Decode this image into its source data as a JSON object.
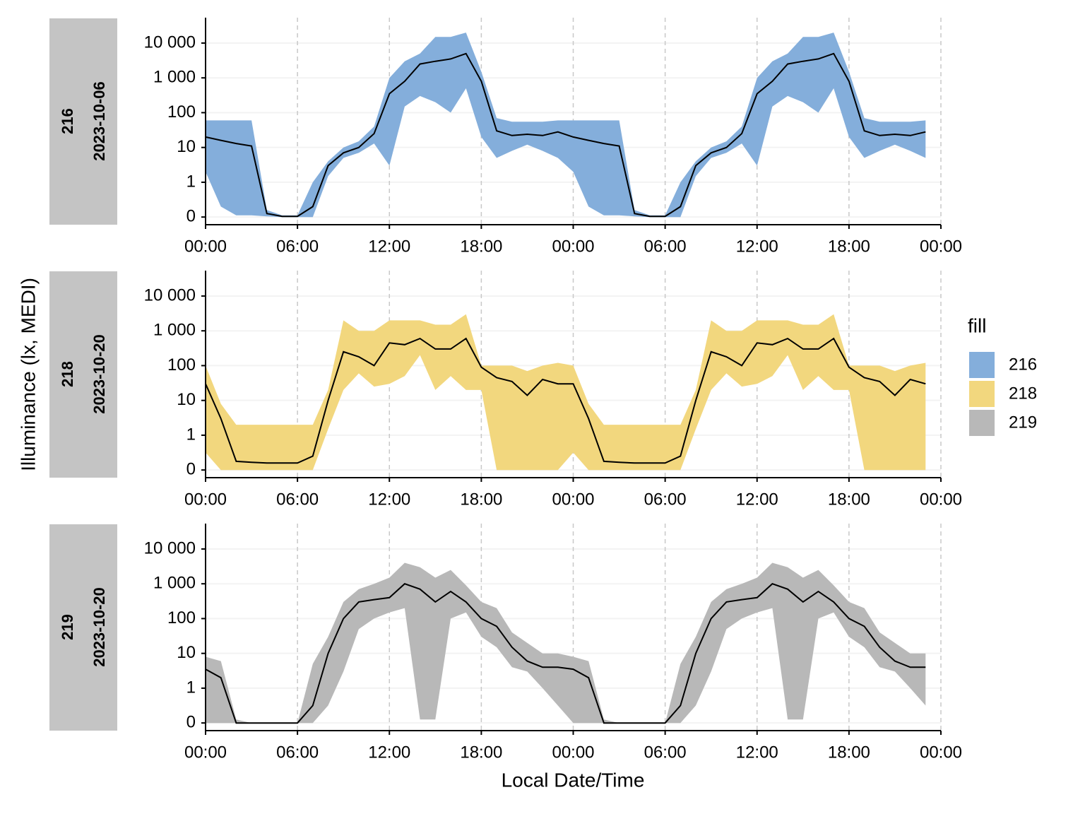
{
  "y_label": "Illuminance (lx, MEDI)",
  "x_label": "Local Date/Time",
  "legend_title": "fill",
  "chart_data": [
    {
      "type": "band",
      "date": "2023-10-06",
      "yscale": "symlog",
      "grid": true,
      "xlim": [
        0,
        48
      ],
      "ylim": [
        -0.22,
        53700
      ],
      "xticks": [
        {
          "value": 0,
          "label": "00:00"
        },
        {
          "value": 6,
          "label": "06:00"
        },
        {
          "value": 12,
          "label": "12:00"
        },
        {
          "value": 18,
          "label": "18:00"
        },
        {
          "value": 24,
          "label": "00:00"
        },
        {
          "value": 30,
          "label": "06:00"
        },
        {
          "value": 36,
          "label": "12:00"
        },
        {
          "value": 42,
          "label": "18:00"
        },
        {
          "value": 48,
          "label": "00:00"
        }
      ],
      "yticks": [
        0,
        1,
        10,
        100,
        {
          "value": 1000,
          "label": "1 000"
        },
        {
          "value": 10000,
          "label": "10 000"
        }
      ],
      "x": [
        0,
        1,
        2,
        3,
        4,
        5,
        6,
        7,
        8,
        9,
        10,
        11,
        12,
        13,
        14,
        15,
        16,
        17,
        18,
        19,
        20,
        21,
        22,
        23,
        24,
        25,
        26,
        27,
        28,
        29,
        30,
        31,
        32,
        33,
        34,
        35,
        36,
        37,
        38,
        39,
        40,
        41,
        42,
        43,
        44,
        45,
        46,
        47
      ],
      "series": [
        {
          "name": "216",
          "color": "#84aedb",
          "values": [
            20,
            16,
            13,
            11,
            0.1,
            0.02,
            0.02,
            0.3,
            3,
            7,
            10,
            25,
            350,
            800,
            2500,
            3000,
            3500,
            5000,
            800,
            30,
            22,
            24,
            22,
            28,
            20,
            16,
            13,
            11,
            0.1,
            0.02,
            0.02,
            0.3,
            3,
            7,
            10,
            25,
            350,
            800,
            2500,
            3000,
            3500,
            5000,
            800,
            30,
            22,
            24,
            22,
            28
          ],
          "lower": [
            2,
            0.3,
            0.05,
            0.05,
            0.02,
            0,
            0,
            0,
            1.5,
            5,
            7,
            13,
            3,
            150,
            300,
            200,
            100,
            500,
            20,
            5,
            8,
            12,
            8,
            5,
            2,
            0.3,
            0.05,
            0.05,
            0.02,
            0,
            0,
            0,
            1.5,
            5,
            7,
            13,
            3,
            150,
            300,
            200,
            100,
            500,
            20,
            5,
            8,
            12,
            8,
            5
          ],
          "upper": [
            60,
            60,
            60,
            60,
            0.2,
            0.05,
            0.05,
            1,
            4,
            10,
            15,
            40,
            1000,
            3000,
            5000,
            15000,
            15000,
            20000,
            1500,
            70,
            55,
            55,
            55,
            60,
            60,
            60,
            60,
            60,
            0.2,
            0.05,
            0.05,
            1,
            4,
            10,
            15,
            40,
            1000,
            3000,
            5000,
            15000,
            15000,
            20000,
            1500,
            70,
            55,
            55,
            55,
            60
          ]
        }
      ]
    },
    {
      "type": "band",
      "date": "2023-10-20",
      "yscale": "symlog",
      "grid": true,
      "xlim": [
        0,
        48
      ],
      "ylim": [
        -0.22,
        53700
      ],
      "xticks": [
        {
          "value": 0,
          "label": "00:00"
        },
        {
          "value": 6,
          "label": "06:00"
        },
        {
          "value": 12,
          "label": "12:00"
        },
        {
          "value": 18,
          "label": "18:00"
        },
        {
          "value": 24,
          "label": "00:00"
        },
        {
          "value": 30,
          "label": "06:00"
        },
        {
          "value": 36,
          "label": "12:00"
        },
        {
          "value": 42,
          "label": "18:00"
        },
        {
          "value": 48,
          "label": "00:00"
        }
      ],
      "yticks": [
        0,
        1,
        10,
        100,
        {
          "value": 1000,
          "label": "1 000"
        },
        {
          "value": 10000,
          "label": "10 000"
        }
      ],
      "x": [
        0,
        1,
        2,
        3,
        4,
        5,
        6,
        7,
        8,
        9,
        10,
        11,
        12,
        13,
        14,
        15,
        16,
        17,
        18,
        19,
        20,
        21,
        22,
        23,
        24,
        25,
        26,
        27,
        28,
        29,
        30,
        31,
        32,
        33,
        34,
        35,
        36,
        37,
        38,
        39,
        40,
        41,
        42,
        43,
        44,
        45,
        46,
        47
      ],
      "series": [
        {
          "name": "218",
          "color": "#f2d77e",
          "values": [
            30,
            3,
            0.25,
            0.22,
            0.2,
            0.2,
            0.2,
            0.4,
            10,
            250,
            180,
            100,
            450,
            400,
            600,
            300,
            300,
            600,
            90,
            45,
            35,
            14,
            40,
            30,
            30,
            3,
            0.25,
            0.22,
            0.2,
            0.2,
            0.2,
            0.4,
            10,
            250,
            180,
            100,
            450,
            400,
            600,
            300,
            300,
            600,
            90,
            45,
            35,
            14,
            40,
            30
          ],
          "lower": [
            0.5,
            0,
            0,
            0,
            0,
            0,
            0,
            0,
            1.5,
            20,
            60,
            25,
            30,
            50,
            200,
            20,
            50,
            20,
            20,
            0,
            0,
            0,
            0,
            0,
            0.5,
            0,
            0,
            0,
            0,
            0,
            0,
            0,
            1.5,
            20,
            60,
            25,
            30,
            50,
            200,
            20,
            50,
            20,
            20,
            0,
            0,
            0,
            0,
            0
          ],
          "upper": [
            100,
            8,
            2,
            2,
            2,
            2,
            2,
            2,
            20,
            2000,
            1000,
            1000,
            2000,
            2000,
            2000,
            1500,
            1500,
            3000,
            100,
            100,
            100,
            70,
            100,
            120,
            100,
            8,
            2,
            2,
            2,
            2,
            2,
            2,
            20,
            2000,
            1000,
            1000,
            2000,
            2000,
            2000,
            1500,
            1500,
            3000,
            100,
            100,
            100,
            70,
            100,
            120
          ]
        }
      ]
    },
    {
      "type": "band",
      "date": "2023-10-20",
      "yscale": "symlog",
      "grid": true,
      "xlim": [
        0,
        48
      ],
      "ylim": [
        -0.22,
        53700
      ],
      "xticks": [
        {
          "value": 0,
          "label": "00:00"
        },
        {
          "value": 6,
          "label": "06:00"
        },
        {
          "value": 12,
          "label": "12:00"
        },
        {
          "value": 18,
          "label": "18:00"
        },
        {
          "value": 24,
          "label": "00:00"
        },
        {
          "value": 30,
          "label": "06:00"
        },
        {
          "value": 36,
          "label": "12:00"
        },
        {
          "value": 42,
          "label": "18:00"
        },
        {
          "value": 48,
          "label": "00:00"
        }
      ],
      "yticks": [
        0,
        1,
        10,
        100,
        {
          "value": 1000,
          "label": "1 000"
        },
        {
          "value": 10000,
          "label": "10 000"
        }
      ],
      "x": [
        0,
        1,
        2,
        3,
        4,
        5,
        6,
        7,
        8,
        9,
        10,
        11,
        12,
        13,
        14,
        15,
        16,
        17,
        18,
        19,
        20,
        21,
        22,
        23,
        24,
        25,
        26,
        27,
        28,
        29,
        30,
        31,
        32,
        33,
        34,
        35,
        36,
        37,
        38,
        39,
        40,
        41,
        42,
        43,
        44,
        45,
        46,
        47
      ],
      "series": [
        {
          "name": "219",
          "color": "#b8b8b8",
          "values": [
            3.5,
            2,
            0,
            0,
            0,
            0,
            0,
            0.5,
            10,
            100,
            300,
            350,
            400,
            1000,
            700,
            300,
            600,
            300,
            100,
            60,
            15,
            6,
            4,
            4,
            3.5,
            2,
            0,
            0,
            0,
            0,
            0,
            0.5,
            10,
            100,
            300,
            350,
            400,
            1000,
            700,
            300,
            600,
            300,
            100,
            60,
            15,
            6,
            4,
            4
          ],
          "lower": [
            0,
            0,
            0,
            0,
            0,
            0,
            0,
            0,
            0.5,
            3,
            50,
            100,
            150,
            200,
            0.1,
            0.1,
            100,
            150,
            30,
            15,
            4,
            3,
            1,
            0.5,
            0,
            0,
            0,
            0,
            0,
            0,
            0,
            0,
            0.5,
            3,
            50,
            100,
            150,
            200,
            0.1,
            0.1,
            100,
            150,
            30,
            15,
            4,
            3,
            1,
            0.5
          ],
          "upper": [
            8,
            6,
            0.1,
            0,
            0,
            0,
            0,
            5,
            30,
            300,
            700,
            1000,
            1500,
            4000,
            3000,
            1500,
            2500,
            900,
            300,
            200,
            40,
            20,
            10,
            10,
            8,
            6,
            0.1,
            0,
            0,
            0,
            0,
            5,
            30,
            300,
            700,
            1000,
            1500,
            4000,
            3000,
            1500,
            2500,
            900,
            300,
            200,
            40,
            20,
            10,
            10
          ]
        }
      ]
    }
  ]
}
